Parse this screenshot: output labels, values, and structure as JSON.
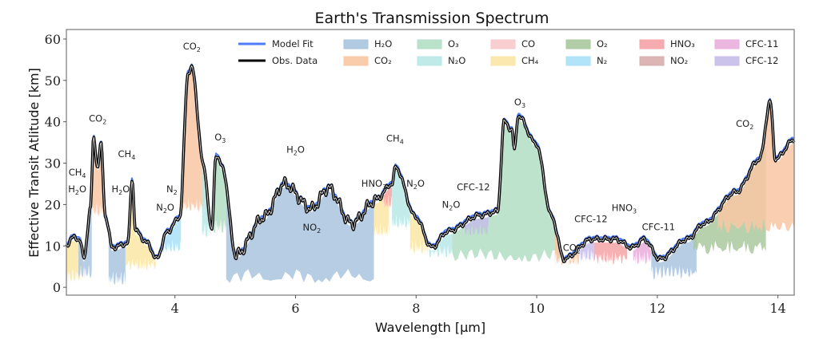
{
  "chart_data": {
    "type": "area",
    "title": "Earth's Transmission Spectrum",
    "xlabel": "Wavelength [μm]",
    "ylabel": "Effective Transit Atlitude [km]",
    "xlim": [
      2.2,
      14.27
    ],
    "ylim": [
      -1.9,
      62.3
    ],
    "xticks": [
      4,
      6,
      8,
      10,
      12,
      14
    ],
    "yticks": [
      0,
      10,
      20,
      30,
      40,
      50,
      60
    ],
    "grid": false,
    "legend_position": "top-right",
    "legend": [
      {
        "key": "model",
        "label": "Model Fit",
        "kind": "line",
        "color": "#4d7ef7"
      },
      {
        "key": "obs",
        "label": "Obs. Data",
        "kind": "line",
        "color": "#000000"
      },
      {
        "key": "H2O",
        "label": "H₂O",
        "kind": "patch",
        "color": "#a9c4de"
      },
      {
        "key": "CO2",
        "label": "CO₂",
        "kind": "patch",
        "color": "#f9c7a3"
      },
      {
        "key": "O3",
        "label": "O₃",
        "kind": "patch",
        "color": "#b3dec4"
      },
      {
        "key": "N2O",
        "label": "N₂O",
        "kind": "patch",
        "color": "#b8e8e6"
      },
      {
        "key": "CO",
        "label": "CO",
        "kind": "patch",
        "color": "#f8c9cb"
      },
      {
        "key": "CH4",
        "label": "CH₄",
        "kind": "patch",
        "color": "#fbe6a6"
      },
      {
        "key": "O2",
        "label": "O₂",
        "kind": "patch",
        "color": "#a9c99e"
      },
      {
        "key": "N2",
        "label": "N₂",
        "kind": "patch",
        "color": "#a9e0f8"
      },
      {
        "key": "HNO3",
        "label": "HNO₃",
        "kind": "patch",
        "color": "#f5a3a6"
      },
      {
        "key": "NO2",
        "label": "NO₂",
        "kind": "patch",
        "color": "#d8adad"
      },
      {
        "key": "CFC11",
        "label": "CFC-11",
        "kind": "patch",
        "color": "#e9aedb"
      },
      {
        "key": "CFC12",
        "label": "CFC-12",
        "kind": "patch",
        "color": "#c7bde9"
      }
    ],
    "observed": {
      "x": [
        2.2,
        2.29,
        2.42,
        2.49,
        2.6,
        2.65,
        2.72,
        2.77,
        2.85,
        2.96,
        3.22,
        3.29,
        3.35,
        3.55,
        3.69,
        3.88,
        4.08,
        4.22,
        4.28,
        4.48,
        4.61,
        4.68,
        4.79,
        5.01,
        5.48,
        5.81,
        6.27,
        6.54,
        6.93,
        7.33,
        7.6,
        7.66,
        7.99,
        8.26,
        8.52,
        9.06,
        9.35,
        9.46,
        9.59,
        9.63,
        9.69,
        9.99,
        10.25,
        10.45,
        10.91,
        11.31,
        11.58,
        11.78,
        12.04,
        12.5,
        12.77,
        13.3,
        13.7,
        13.87,
        13.96,
        14.27
      ],
      "y": [
        10,
        12,
        11.6,
        7,
        19,
        36,
        29,
        34.7,
        17,
        9.6,
        10.6,
        26,
        13.5,
        10.6,
        6.8,
        13.5,
        17,
        52,
        53,
        29,
        13.5,
        32,
        29,
        7.7,
        17,
        25,
        19,
        24,
        15.4,
        21,
        25,
        29,
        17,
        9.6,
        13.5,
        17.4,
        18.3,
        40,
        38,
        33,
        41.5,
        34.7,
        17,
        6.8,
        11.6,
        11.6,
        9.6,
        11.6,
        6.8,
        11.6,
        15.4,
        23,
        31,
        44.8,
        31,
        35.7
      ]
    },
    "molecule_regions": [
      {
        "molecule": "CH4",
        "x": [
          2.2,
          2.45
        ],
        "bottom_km": 1
      },
      {
        "molecule": "H2O",
        "x": [
          2.4,
          2.62
        ],
        "bottom_km": 2
      },
      {
        "molecule": "CO2",
        "x": [
          2.62,
          2.9
        ],
        "bottom_km": 17
      },
      {
        "molecule": "H2O",
        "x": [
          2.9,
          3.18
        ],
        "bottom_km": 0.5
      },
      {
        "molecule": "CH4",
        "x": [
          3.18,
          3.7
        ],
        "bottom_km": 4
      },
      {
        "molecule": "N2",
        "x": [
          3.75,
          4.1
        ],
        "bottom_km": 8
      },
      {
        "molecule": "CO2",
        "x": [
          4.1,
          4.52
        ],
        "bottom_km": 18
      },
      {
        "molecule": "N2O",
        "x": [
          4.45,
          4.62
        ],
        "bottom_km": 12
      },
      {
        "molecule": "O3",
        "x": [
          4.62,
          4.85
        ],
        "bottom_km": 13
      },
      {
        "molecule": "H2O",
        "x": [
          4.85,
          7.3
        ],
        "bottom_km": 1
      },
      {
        "molecule": "CH4",
        "x": [
          7.3,
          7.55
        ],
        "bottom_km": 12
      },
      {
        "molecule": "HNO3",
        "x": [
          7.45,
          7.6
        ],
        "bottom_km": 19
      },
      {
        "molecule": "N2O",
        "x": [
          7.6,
          7.9
        ],
        "bottom_km": 14
      },
      {
        "molecule": "CH4",
        "x": [
          7.9,
          8.2
        ],
        "bottom_km": 8
      },
      {
        "molecule": "N2O",
        "x": [
          8.2,
          8.6
        ],
        "bottom_km": 7
      },
      {
        "molecule": "O3",
        "x": [
          8.6,
          10.45
        ],
        "bottom_km": 6
      },
      {
        "molecule": "CFC12",
        "x": [
          8.8,
          9.2
        ],
        "bottom_km": 12
      },
      {
        "molecule": "CO2",
        "x": [
          10.3,
          10.7
        ],
        "bottom_km": 5
      },
      {
        "molecule": "CFC12",
        "x": [
          10.7,
          10.95
        ],
        "bottom_km": 6
      },
      {
        "molecule": "HNO3",
        "x": [
          10.95,
          11.5
        ],
        "bottom_km": 5.5
      },
      {
        "molecule": "CFC11",
        "x": [
          11.6,
          11.9
        ],
        "bottom_km": 5.5
      },
      {
        "molecule": "H2O",
        "x": [
          11.9,
          12.65
        ],
        "bottom_km": 2
      },
      {
        "molecule": "O2",
        "x": [
          12.6,
          13.8
        ],
        "bottom_km": 8
      },
      {
        "molecule": "CO2",
        "x": [
          13.0,
          14.27
        ],
        "bottom_km": 13
      }
    ],
    "annotations": [
      {
        "text": "CH",
        "sub": "4",
        "x": 2.38,
        "y": 27
      },
      {
        "text": "H",
        "sub": "2",
        "tail": "O",
        "x": 2.38,
        "y": 23
      },
      {
        "text": "CO",
        "sub": "2",
        "x": 2.72,
        "y": 40
      },
      {
        "text": "H",
        "sub": "2",
        "tail": "O",
        "x": 3.1,
        "y": 23
      },
      {
        "text": "CH",
        "sub": "4",
        "x": 3.2,
        "y": 31.5
      },
      {
        "text": "N",
        "sub": "2",
        "x": 3.95,
        "y": 23
      },
      {
        "text": "N",
        "sub": "2",
        "tail": "O",
        "x": 3.84,
        "y": 18.5
      },
      {
        "text": "CO",
        "sub": "2",
        "x": 4.28,
        "y": 57.5
      },
      {
        "text": "O",
        "sub": "3",
        "x": 4.75,
        "y": 35.5
      },
      {
        "text": "H",
        "sub": "2",
        "tail": "O",
        "x": 6.0,
        "y": 32.5
      },
      {
        "text": "NO",
        "sub": "2",
        "x": 6.27,
        "y": 13.7
      },
      {
        "text": "HNO",
        "sub": "3",
        "x": 7.3,
        "y": 24.3
      },
      {
        "text": "CH",
        "sub": "4",
        "x": 7.65,
        "y": 35.2
      },
      {
        "text": "N",
        "sub": "2",
        "tail": "O",
        "x": 7.99,
        "y": 24.3
      },
      {
        "text": "CFC-12",
        "x": 8.95,
        "y": 23.5
      },
      {
        "text": "N",
        "sub": "2",
        "tail": "O",
        "x": 8.58,
        "y": 19.2
      },
      {
        "text": "O",
        "sub": "3",
        "x": 9.72,
        "y": 44
      },
      {
        "text": "CO",
        "sub": "2",
        "x": 10.58,
        "y": 8.8
      },
      {
        "text": "CFC-12",
        "x": 10.9,
        "y": 15.7
      },
      {
        "text": "HNO",
        "sub": "3",
        "x": 11.45,
        "y": 18.4
      },
      {
        "text": "CFC-11",
        "x": 12.02,
        "y": 13.8
      },
      {
        "text": "CO",
        "sub": "2",
        "x": 13.45,
        "y": 38.8
      }
    ]
  }
}
